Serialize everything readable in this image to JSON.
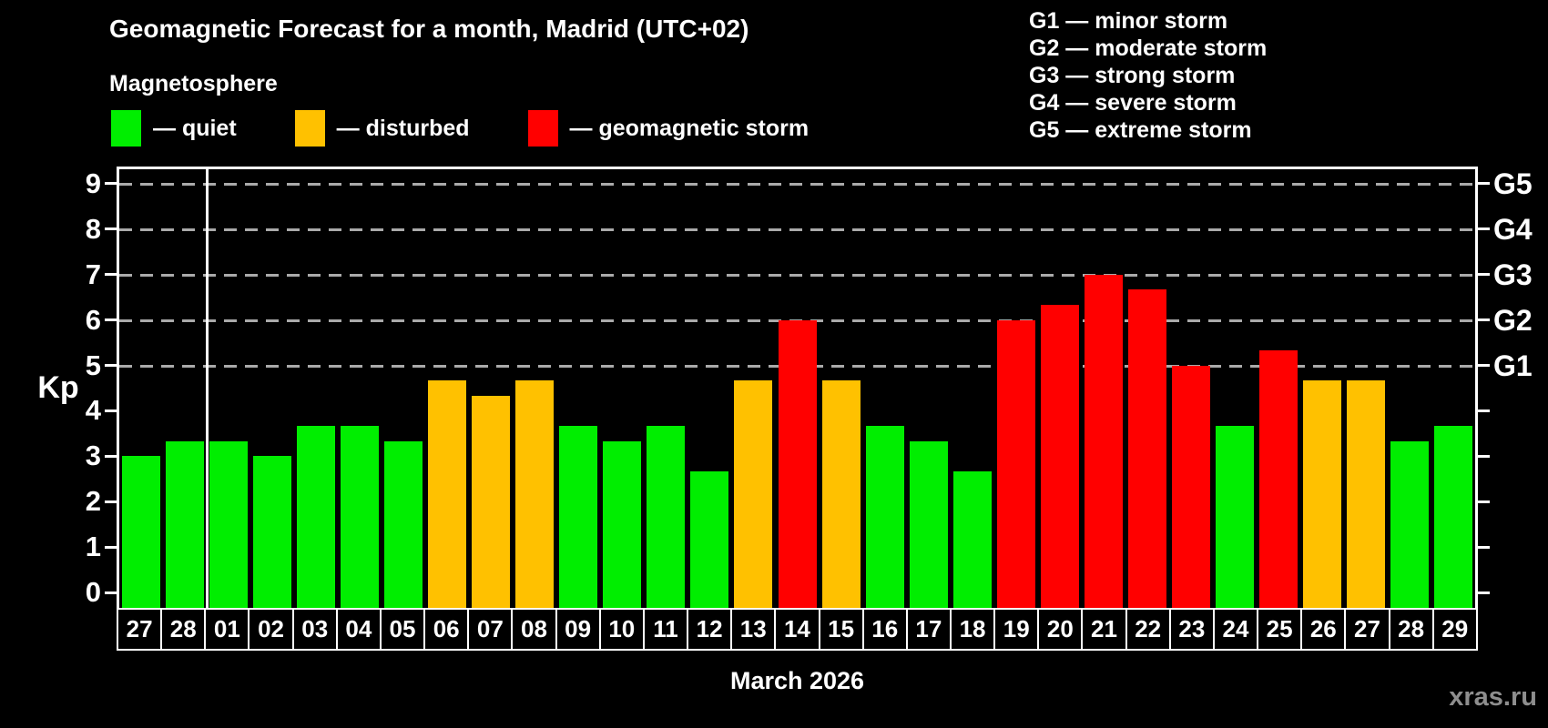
{
  "title": "Geomagnetic Forecast for a month, Madrid (UTC+02)",
  "subtitle": "Magnetosphere",
  "status_legend": [
    {
      "label": "— quiet",
      "status": "quiet"
    },
    {
      "label": "— disturbed",
      "status": "disturbed"
    },
    {
      "label": "— geomagnetic storm",
      "status": "storm"
    }
  ],
  "g_scale_legend": [
    "G1 — minor storm",
    "G2 — moderate storm",
    "G3 — strong storm",
    "G4 — severe storm",
    "G5 — extreme storm"
  ],
  "watermark": "xras.ru",
  "colors": {
    "background": "#000000",
    "text": "#ffffff",
    "quiet": "#00ee00",
    "disturbed": "#ffc100",
    "storm": "#ff0000",
    "gridline": "#aaaaaa",
    "watermark": "#8e8e8e"
  },
  "chart_data": {
    "type": "bar",
    "title": "Geomagnetic Forecast for a month, Madrid (UTC+02)",
    "xlabel": "March 2026",
    "ylabel": "Kp",
    "ylim": [
      0,
      9
    ],
    "yticks": [
      0,
      1,
      2,
      3,
      4,
      5,
      6,
      7,
      8,
      9
    ],
    "grid": "dashed horizontal lines at Kp 5 through 9",
    "gridlines_at": [
      5,
      6,
      7,
      8,
      9
    ],
    "right_axis_labels": [
      {
        "label": "G1",
        "kp": 5
      },
      {
        "label": "G2",
        "kp": 6
      },
      {
        "label": "G3",
        "kp": 7
      },
      {
        "label": "G4",
        "kp": 8
      },
      {
        "label": "G5",
        "kp": 9
      }
    ],
    "legend_position": "top-left",
    "month_separator_after_index": 1,
    "bars": [
      {
        "day": "27",
        "kp": 3.0,
        "status": "quiet"
      },
      {
        "day": "28",
        "kp": 3.33,
        "status": "quiet"
      },
      {
        "day": "01",
        "kp": 3.33,
        "status": "quiet"
      },
      {
        "day": "02",
        "kp": 3.0,
        "status": "quiet"
      },
      {
        "day": "03",
        "kp": 3.67,
        "status": "quiet"
      },
      {
        "day": "04",
        "kp": 3.67,
        "status": "quiet"
      },
      {
        "day": "05",
        "kp": 3.33,
        "status": "quiet"
      },
      {
        "day": "06",
        "kp": 4.67,
        "status": "disturbed"
      },
      {
        "day": "07",
        "kp": 4.33,
        "status": "disturbed"
      },
      {
        "day": "08",
        "kp": 4.67,
        "status": "disturbed"
      },
      {
        "day": "09",
        "kp": 3.67,
        "status": "quiet"
      },
      {
        "day": "10",
        "kp": 3.33,
        "status": "quiet"
      },
      {
        "day": "11",
        "kp": 3.67,
        "status": "quiet"
      },
      {
        "day": "12",
        "kp": 2.67,
        "status": "quiet"
      },
      {
        "day": "13",
        "kp": 4.67,
        "status": "disturbed"
      },
      {
        "day": "14",
        "kp": 6.0,
        "status": "storm"
      },
      {
        "day": "15",
        "kp": 4.67,
        "status": "disturbed"
      },
      {
        "day": "16",
        "kp": 3.67,
        "status": "quiet"
      },
      {
        "day": "17",
        "kp": 3.33,
        "status": "quiet"
      },
      {
        "day": "18",
        "kp": 2.67,
        "status": "quiet"
      },
      {
        "day": "19",
        "kp": 6.0,
        "status": "storm"
      },
      {
        "day": "20",
        "kp": 6.33,
        "status": "storm"
      },
      {
        "day": "21",
        "kp": 7.0,
        "status": "storm"
      },
      {
        "day": "22",
        "kp": 6.67,
        "status": "storm"
      },
      {
        "day": "23",
        "kp": 5.0,
        "status": "storm"
      },
      {
        "day": "24",
        "kp": 3.67,
        "status": "quiet"
      },
      {
        "day": "25",
        "kp": 5.33,
        "status": "storm"
      },
      {
        "day": "26",
        "kp": 4.67,
        "status": "disturbed"
      },
      {
        "day": "27",
        "kp": 4.67,
        "status": "disturbed"
      },
      {
        "day": "28",
        "kp": 3.33,
        "status": "quiet"
      },
      {
        "day": "29",
        "kp": 3.67,
        "status": "quiet"
      }
    ]
  }
}
